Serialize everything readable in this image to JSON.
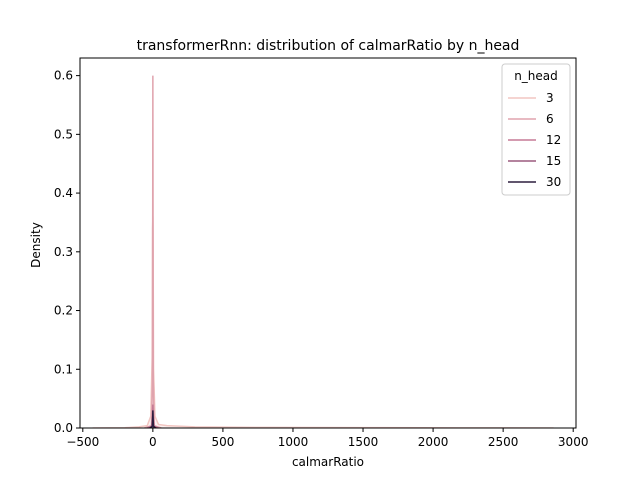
{
  "chart_data": {
    "type": "area",
    "title": "transformerRnn: distribution of calmarRatio by n_head",
    "xlabel": "calmarRatio",
    "ylabel": "Density",
    "xlim": [
      -520,
      3020
    ],
    "ylim": [
      0,
      0.63
    ],
    "x_ticks": [
      -500,
      0,
      500,
      1000,
      1500,
      2000,
      2500,
      3000
    ],
    "x_tick_labels": [
      "−500",
      "0",
      "500",
      "1000",
      "1500",
      "2000",
      "2500",
      "3000"
    ],
    "y_ticks": [
      0.0,
      0.1,
      0.2,
      0.3,
      0.4,
      0.5,
      0.6
    ],
    "y_tick_labels": [
      "0.0",
      "0.1",
      "0.2",
      "0.3",
      "0.4",
      "0.5",
      "0.6"
    ],
    "grid": false,
    "legend": {
      "title": "n_head",
      "placement": "top-right"
    },
    "series": [
      {
        "name": "3",
        "color": "#f2c6c2",
        "x": [
          -430,
          -200,
          -100,
          -40,
          -15,
          -5,
          -2,
          0,
          2,
          5,
          15,
          40,
          100,
          300,
          800,
          1500,
          2200,
          2860
        ],
        "y": [
          0,
          0.0005,
          0.002,
          0.004,
          0.02,
          0.12,
          0.34,
          0.36,
          0.3,
          0.1,
          0.02,
          0.006,
          0.004,
          0.002,
          0.001,
          0.0006,
          0.0003,
          0
        ]
      },
      {
        "name": "6",
        "color": "#e0a3ad",
        "x": [
          -60,
          -10,
          -3,
          -1,
          0,
          1,
          3,
          10,
          60
        ],
        "y": [
          0,
          0.004,
          0.08,
          0.4,
          0.6,
          0.42,
          0.08,
          0.004,
          0
        ]
      },
      {
        "name": "12",
        "color": "#c57a95",
        "x": [
          -40,
          -8,
          -3,
          0,
          3,
          8,
          40
        ],
        "y": [
          0,
          0.003,
          0.02,
          0.04,
          0.02,
          0.003,
          0
        ]
      },
      {
        "name": "15",
        "color": "#9c5a7e",
        "x": [
          -30,
          -6,
          -2,
          0,
          2,
          6,
          30
        ],
        "y": [
          0,
          0.002,
          0.015,
          0.025,
          0.015,
          0.002,
          0
        ]
      },
      {
        "name": "30",
        "color": "#2d1e3e",
        "x": [
          -20,
          -4,
          -1,
          0,
          1,
          4,
          20
        ],
        "y": [
          0,
          0.003,
          0.02,
          0.03,
          0.02,
          0.003,
          0
        ]
      }
    ]
  }
}
